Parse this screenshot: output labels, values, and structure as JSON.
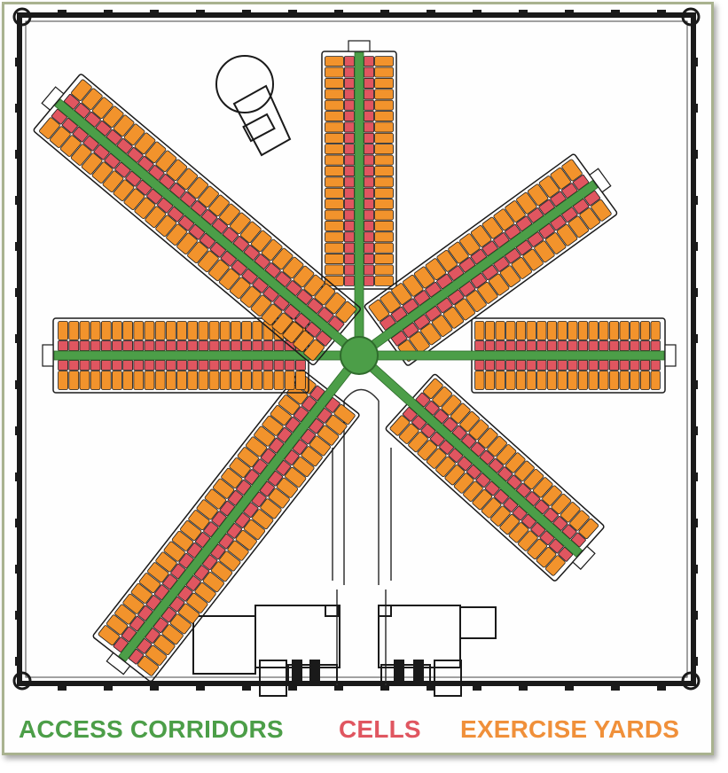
{
  "legend": {
    "corridors": "ACCESS CORRIDORS",
    "cells": "CELLS",
    "yards": "EXERCISE YARDS"
  },
  "colors": {
    "corridor": "#4c9e48",
    "cell": "#e05660",
    "yard": "#f2932c",
    "wall": "#1a1a1a",
    "frame": "#a9b28f",
    "legend_corridors": "#4c9e48",
    "legend_cells": "#e05660",
    "legend_yards": "#f0903a"
  },
  "wings": [
    {
      "name": "north",
      "cells_per_row": 21
    },
    {
      "name": "north-east",
      "cells_per_row": 18
    },
    {
      "name": "east",
      "cells_per_row": 18
    },
    {
      "name": "south-east",
      "cells_per_row": 18
    },
    {
      "name": "south-west",
      "cells_per_row": 25
    },
    {
      "name": "west",
      "cells_per_row": 23
    },
    {
      "name": "north-west",
      "cells_per_row": 26
    }
  ]
}
